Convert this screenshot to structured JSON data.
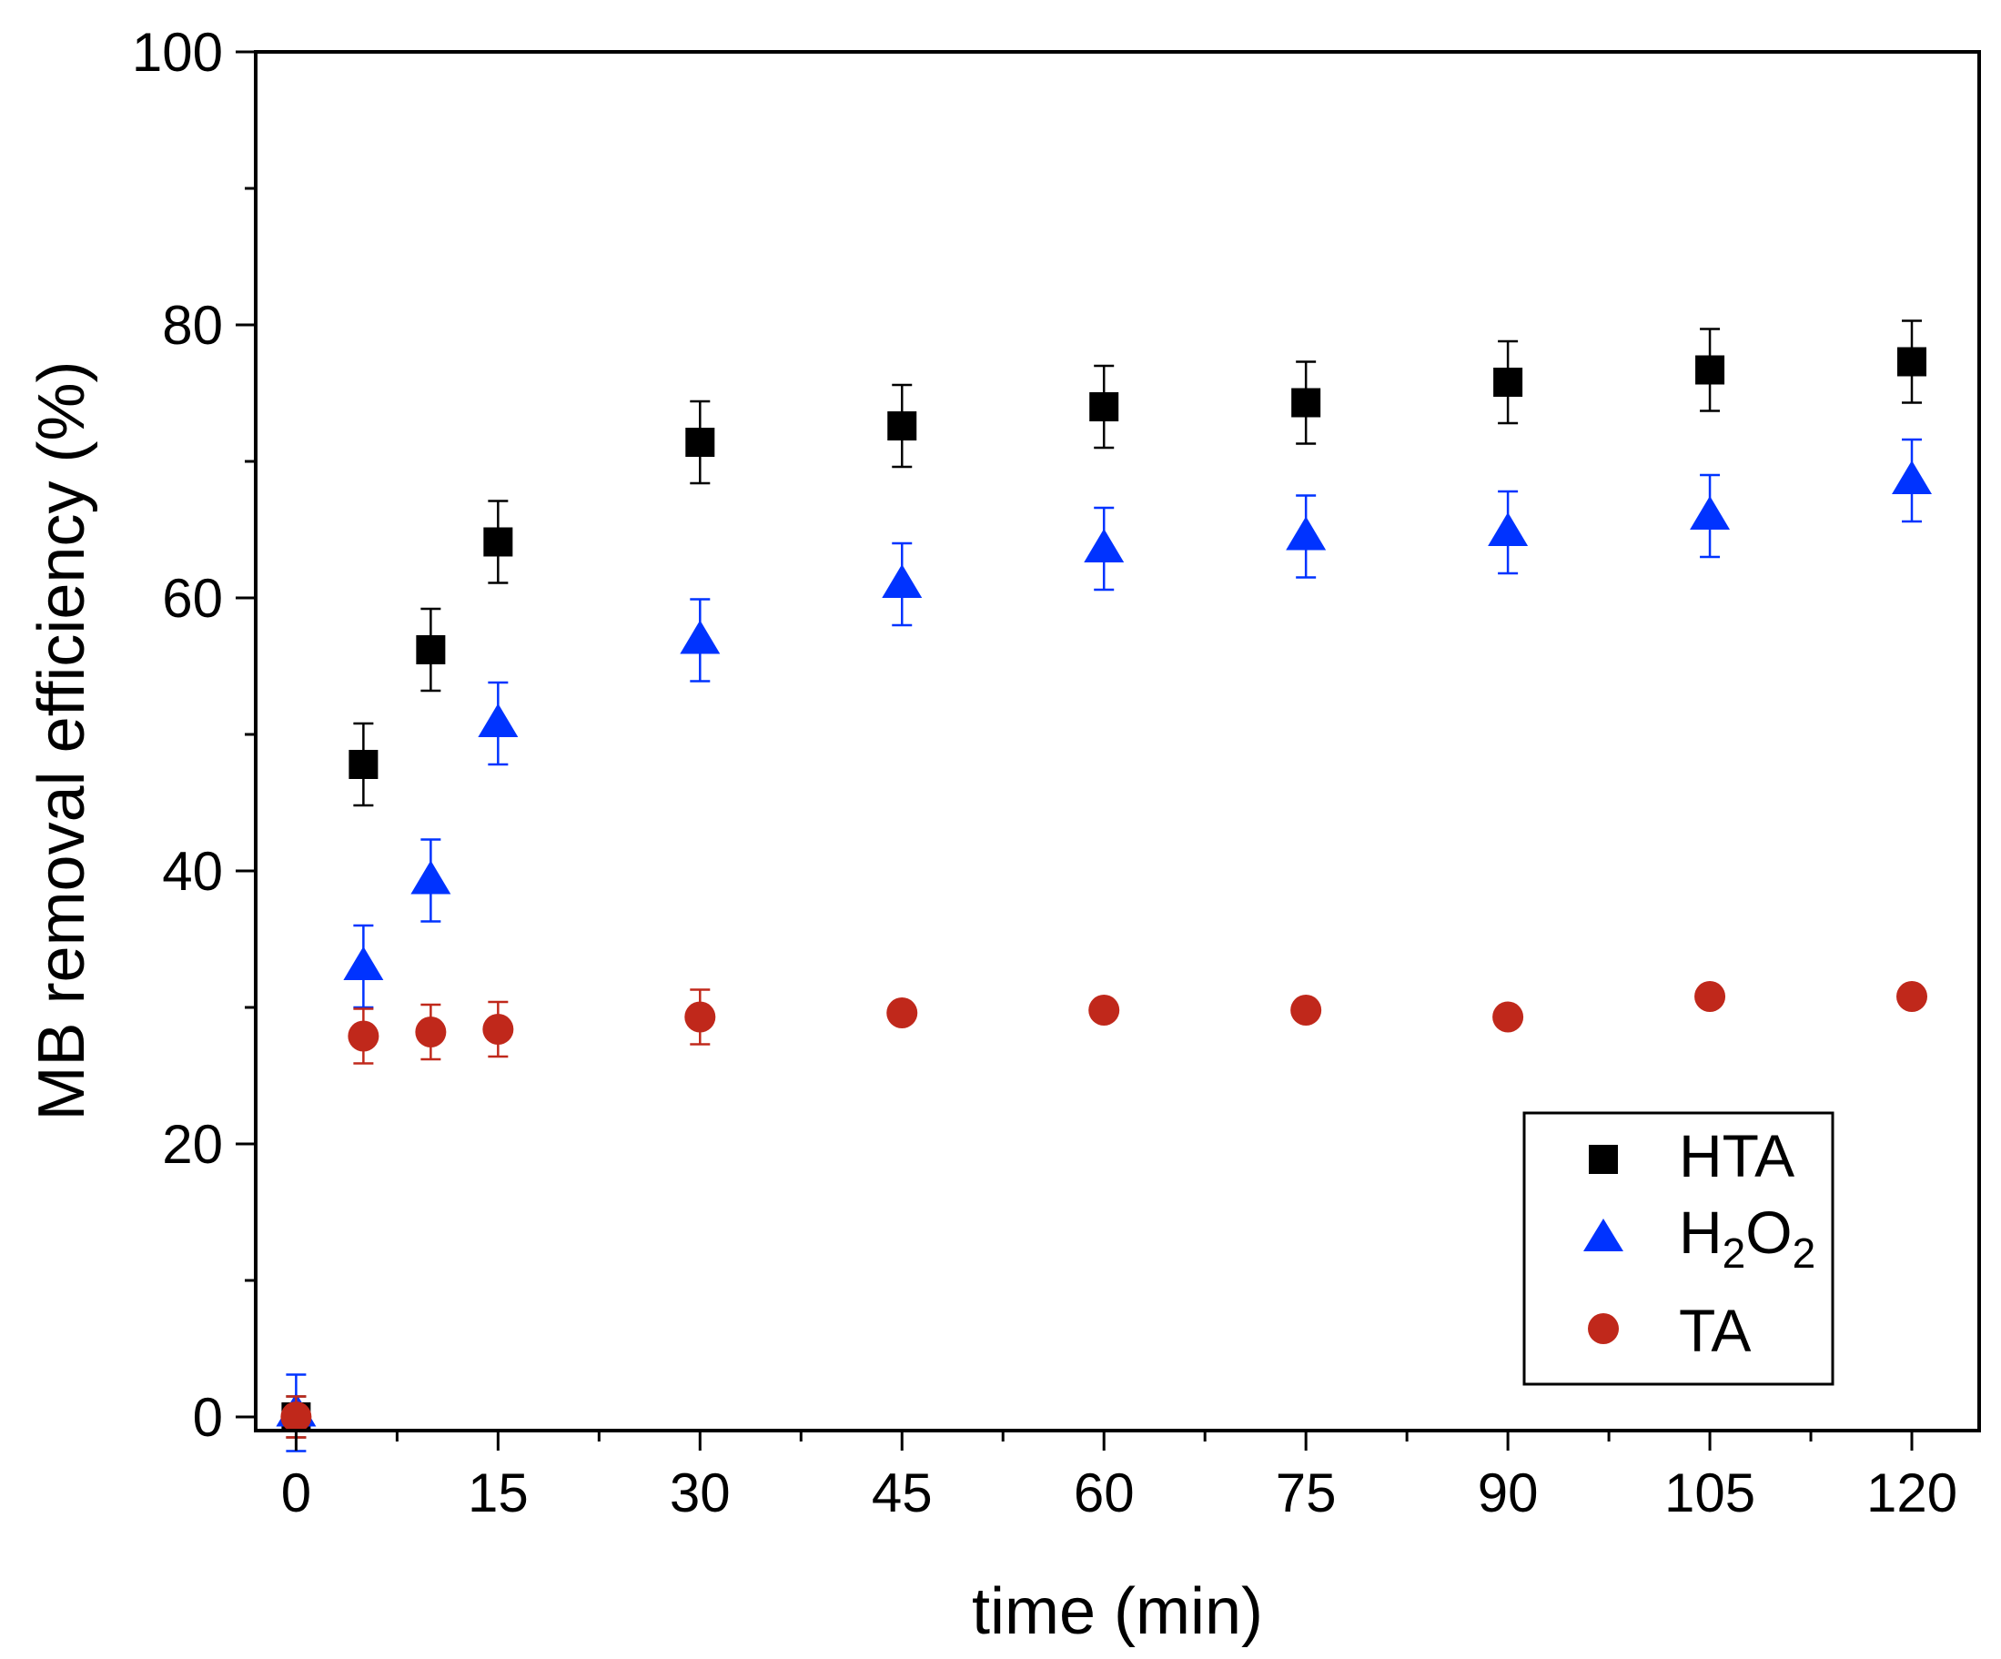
{
  "chart_data": {
    "type": "scatter",
    "title": "",
    "xlabel": "time (min)",
    "ylabel": "MB removal efficiency (%)",
    "xlim": [
      -3,
      125
    ],
    "ylim": [
      -1,
      100
    ],
    "xticks": [
      0,
      15,
      30,
      45,
      60,
      75,
      90,
      105,
      120
    ],
    "xtick_labels": [
      "0",
      "15",
      "30",
      "45",
      "60",
      "75",
      "90",
      "105",
      "120"
    ],
    "x_minor_ticks": [
      7.5,
      22.5,
      37.5,
      52.5,
      67.5,
      82.5,
      97.5,
      112.5
    ],
    "yticks": [
      0,
      20,
      40,
      60,
      80,
      100
    ],
    "ytick_labels": [
      "0",
      "20",
      "40",
      "60",
      "80",
      "100"
    ],
    "y_minor_ticks": [
      10,
      30,
      50,
      70,
      90
    ],
    "grid": false,
    "legend_position": "bottom-right",
    "x": [
      0,
      5,
      10,
      15,
      30,
      45,
      60,
      75,
      90,
      105,
      120
    ],
    "series": [
      {
        "name": "HTA",
        "legend_label": "HTA",
        "marker": "square",
        "color": "#000000",
        "values": [
          0,
          47.8,
          56.2,
          64.1,
          71.4,
          72.6,
          74.0,
          74.3,
          75.8,
          76.7,
          77.3
        ],
        "errors": [
          1.5,
          3.0,
          3.0,
          3.0,
          3.0,
          3.0,
          3.0,
          3.0,
          3.0,
          3.0,
          3.0
        ]
      },
      {
        "name": "H2O2",
        "legend_label": "H",
        "legend_sub1": "2",
        "legend_mid": "O",
        "legend_sub2": "2",
        "marker": "triangle",
        "color": "#0033ff",
        "values": [
          0.3,
          33.0,
          39.3,
          50.8,
          56.9,
          61.0,
          63.6,
          64.5,
          64.8,
          66.0,
          68.6
        ],
        "errors": [
          2.8,
          3.0,
          3.0,
          3.0,
          3.0,
          3.0,
          3.0,
          3.0,
          3.0,
          3.0,
          3.0
        ]
      },
      {
        "name": "TA",
        "legend_label": "TA",
        "marker": "circle",
        "color": "#c0281b",
        "values": [
          0,
          27.9,
          28.2,
          28.4,
          29.3,
          29.6,
          29.8,
          29.8,
          29.3,
          30.8,
          30.8
        ],
        "errors": [
          1.5,
          2.0,
          2.0,
          2.0,
          2.0,
          0.5,
          0.5,
          0.5,
          0.5,
          0.5,
          0.5
        ]
      }
    ]
  }
}
